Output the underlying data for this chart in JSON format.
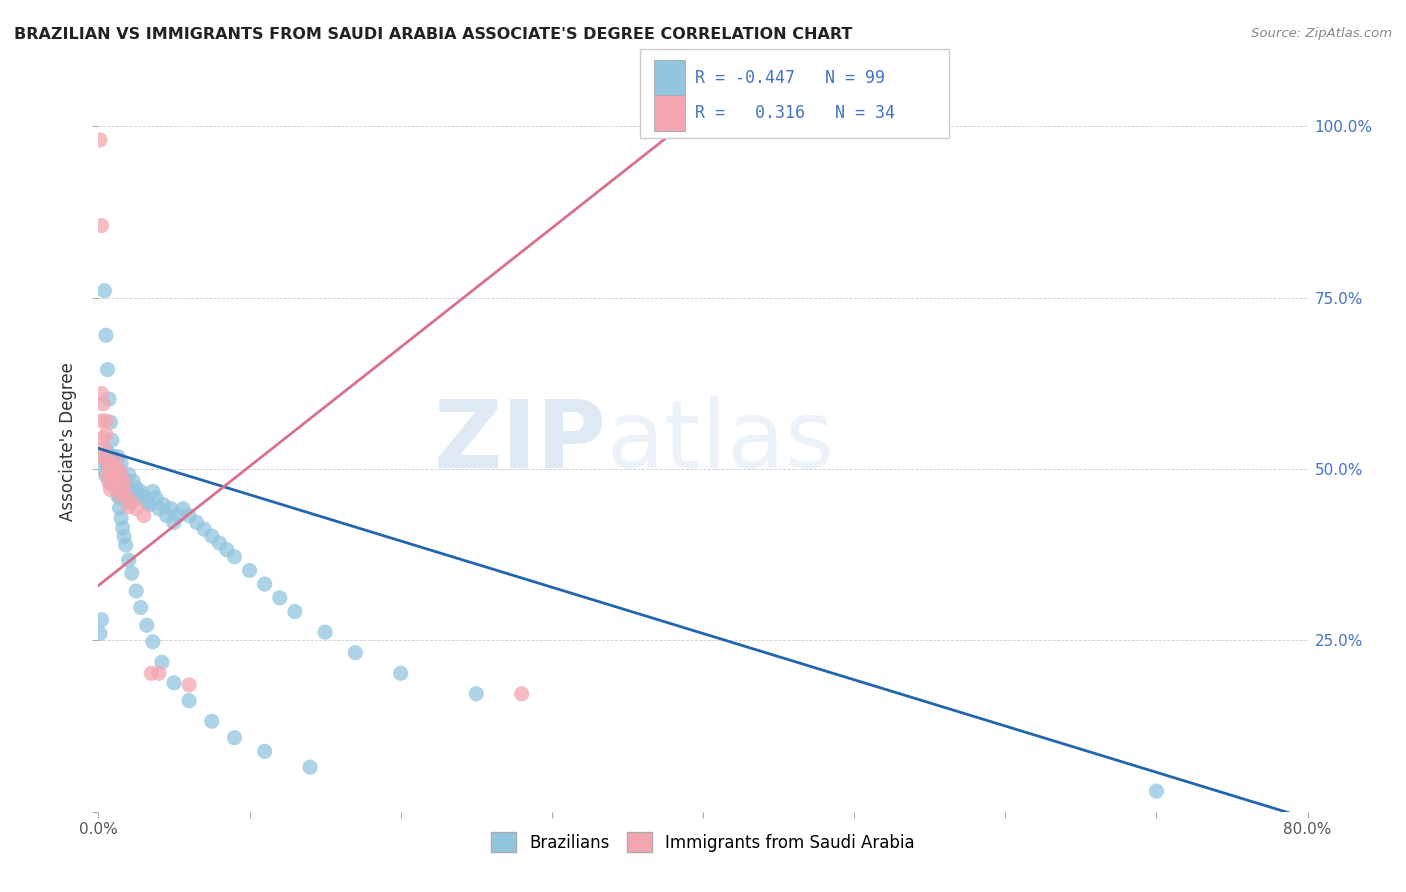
{
  "title": "BRAZILIAN VS IMMIGRANTS FROM SAUDI ARABIA ASSOCIATE'S DEGREE CORRELATION CHART",
  "source": "Source: ZipAtlas.com",
  "ylabel": "Associate's Degree",
  "right_yticks": [
    "100.0%",
    "75.0%",
    "50.0%",
    "25.0%"
  ],
  "right_ytick_vals": [
    1.0,
    0.75,
    0.5,
    0.25
  ],
  "watermark_zip": "ZIP",
  "watermark_atlas": "atlas",
  "legend": {
    "blue_R": "-0.447",
    "blue_N": "99",
    "pink_R": "0.316",
    "pink_N": "34"
  },
  "blue_color": "#92c5de",
  "pink_color": "#f4a6b0",
  "blue_line_color": "#2166ac",
  "pink_line_color": "#d6728a",
  "blue_scatter_x": [
    0.001,
    0.002,
    0.003,
    0.004,
    0.005,
    0.005,
    0.006,
    0.006,
    0.007,
    0.007,
    0.007,
    0.008,
    0.008,
    0.008,
    0.009,
    0.009,
    0.009,
    0.01,
    0.01,
    0.01,
    0.011,
    0.011,
    0.012,
    0.012,
    0.013,
    0.013,
    0.014,
    0.014,
    0.015,
    0.015,
    0.016,
    0.016,
    0.017,
    0.018,
    0.019,
    0.02,
    0.021,
    0.022,
    0.023,
    0.024,
    0.025,
    0.026,
    0.028,
    0.03,
    0.032,
    0.034,
    0.036,
    0.038,
    0.04,
    0.043,
    0.045,
    0.048,
    0.05,
    0.053,
    0.056,
    0.06,
    0.065,
    0.07,
    0.075,
    0.08,
    0.085,
    0.09,
    0.1,
    0.11,
    0.12,
    0.13,
    0.15,
    0.17,
    0.2,
    0.25,
    0.004,
    0.005,
    0.006,
    0.007,
    0.008,
    0.009,
    0.01,
    0.011,
    0.012,
    0.013,
    0.014,
    0.015,
    0.016,
    0.017,
    0.018,
    0.02,
    0.022,
    0.025,
    0.028,
    0.032,
    0.036,
    0.042,
    0.05,
    0.06,
    0.075,
    0.09,
    0.11,
    0.14,
    0.7
  ],
  "blue_scatter_y": [
    0.26,
    0.28,
    0.5,
    0.52,
    0.49,
    0.51,
    0.505,
    0.525,
    0.485,
    0.505,
    0.52,
    0.48,
    0.5,
    0.515,
    0.49,
    0.508,
    0.518,
    0.476,
    0.492,
    0.507,
    0.48,
    0.51,
    0.47,
    0.488,
    0.5,
    0.518,
    0.46,
    0.478,
    0.492,
    0.508,
    0.456,
    0.472,
    0.486,
    0.462,
    0.476,
    0.492,
    0.452,
    0.467,
    0.482,
    0.456,
    0.472,
    0.462,
    0.467,
    0.46,
    0.452,
    0.448,
    0.467,
    0.458,
    0.442,
    0.448,
    0.432,
    0.442,
    0.422,
    0.432,
    0.442,
    0.432,
    0.422,
    0.412,
    0.402,
    0.392,
    0.382,
    0.372,
    0.352,
    0.332,
    0.312,
    0.292,
    0.262,
    0.232,
    0.202,
    0.172,
    0.76,
    0.695,
    0.645,
    0.602,
    0.568,
    0.542,
    0.518,
    0.498,
    0.478,
    0.46,
    0.443,
    0.428,
    0.414,
    0.401,
    0.389,
    0.367,
    0.348,
    0.322,
    0.298,
    0.272,
    0.248,
    0.218,
    0.188,
    0.162,
    0.132,
    0.108,
    0.088,
    0.065,
    0.03
  ],
  "pink_scatter_x": [
    0.001,
    0.001,
    0.002,
    0.002,
    0.003,
    0.003,
    0.004,
    0.005,
    0.005,
    0.006,
    0.006,
    0.007,
    0.007,
    0.008,
    0.008,
    0.009,
    0.01,
    0.011,
    0.012,
    0.013,
    0.014,
    0.015,
    0.016,
    0.017,
    0.018,
    0.02,
    0.022,
    0.025,
    0.03,
    0.035,
    0.04,
    0.06,
    0.28,
    0.002
  ],
  "pink_scatter_y": [
    0.98,
    0.52,
    0.61,
    0.57,
    0.545,
    0.595,
    0.53,
    0.57,
    0.55,
    0.51,
    0.49,
    0.505,
    0.48,
    0.495,
    0.47,
    0.495,
    0.488,
    0.514,
    0.482,
    0.5,
    0.462,
    0.492,
    0.472,
    0.48,
    0.462,
    0.445,
    0.452,
    0.442,
    0.432,
    0.202,
    0.202,
    0.185,
    0.172,
    0.855
  ],
  "blue_line_x": [
    0.0,
    0.8
  ],
  "blue_line_y": [
    0.53,
    -0.01
  ],
  "pink_line_x": [
    0.0,
    0.42
  ],
  "pink_line_y": [
    0.33,
    1.06
  ],
  "xlim": [
    0.0,
    0.8
  ],
  "ylim": [
    0.0,
    1.08
  ],
  "xtick_minor_positions": [
    0.0,
    0.1,
    0.2,
    0.3,
    0.4,
    0.5,
    0.6,
    0.7,
    0.8
  ],
  "bottom_legend_labels": [
    "Brazilians",
    "Immigrants from Saudi Arabia"
  ]
}
